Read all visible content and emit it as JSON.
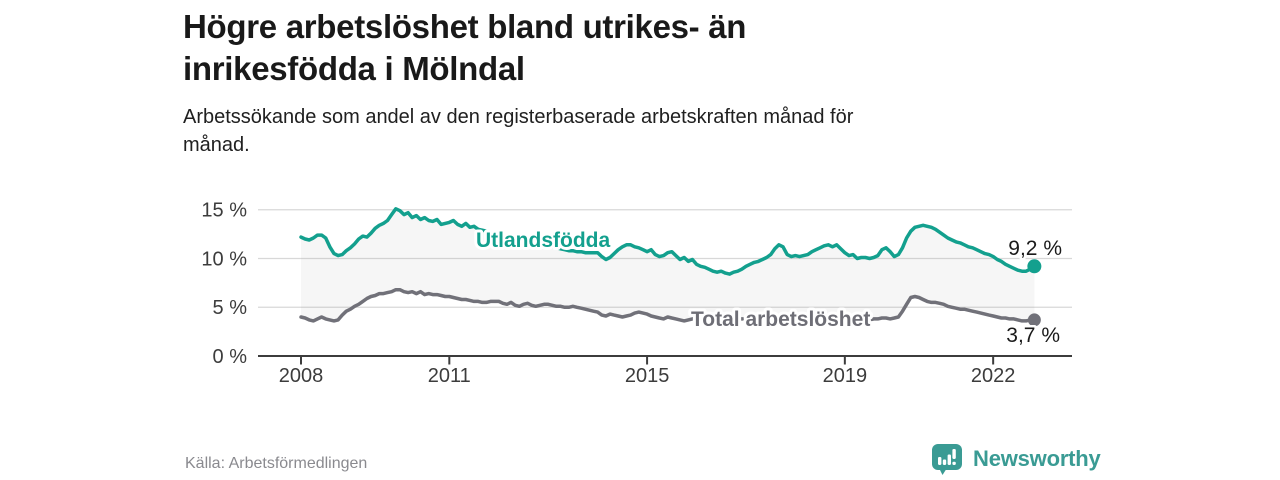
{
  "header": {
    "title_line1": "Högre arbetslöshet bland utrikes- än",
    "title_line2": "inrikesfödda i Mölndal",
    "subtitle_line1": "Arbetssökande som andel av den registerbaserade arbetskraften månad för",
    "subtitle_line2": "månad."
  },
  "footer": {
    "source": "Källa: Arbetsförmedlingen",
    "brand": "Newsworthy"
  },
  "colors": {
    "teal_line": "#13a08e",
    "gray_line": "#717179",
    "area_fill": "#8c8c8c",
    "grid": "#d8d8d8",
    "axis": "#3c3c3c",
    "text_dark": "#191919",
    "muted": "#8a8a8f",
    "brand_teal": "#3a9b94"
  },
  "chart_data": {
    "type": "line",
    "title": "Högre arbetslöshet bland utrikes- än inrikesfödda i Mölndal",
    "subtitle": "Arbetssökande som andel av den registerbaserade arbetskraften månad för månad.",
    "x_start": "2008-01",
    "x_end": "2022-11",
    "x_interval": "monthly",
    "xtick_labels": [
      "2008",
      "2011",
      "2015",
      "2019",
      "2022"
    ],
    "ytick_labels": [
      "15 %",
      "10 %",
      "5 %",
      "0 %"
    ],
    "ylim": [
      0,
      16
    ],
    "grid": "horizontal",
    "legend": "inline-labels",
    "area_between_series": true,
    "series": [
      {
        "name": "Utlandsfödda",
        "color": "#13a08e",
        "end_label": "9,2 %",
        "end_value": 9.2,
        "values": [
          12.2,
          12.0,
          11.9,
          12.1,
          12.4,
          12.4,
          12.1,
          11.2,
          10.5,
          10.3,
          10.4,
          10.8,
          11.1,
          11.5,
          12.0,
          12.3,
          12.2,
          12.6,
          13.1,
          13.4,
          13.6,
          13.9,
          14.5,
          15.1,
          14.9,
          14.5,
          14.7,
          14.2,
          14.4,
          14.0,
          14.2,
          13.9,
          13.8,
          14.0,
          13.5,
          13.6,
          13.7,
          13.9,
          13.5,
          13.3,
          13.6,
          13.2,
          13.3,
          13.0,
          12.9,
          12.8,
          12.7,
          12.6,
          12.5,
          12.4,
          12.3,
          12.2,
          12.1,
          12.0,
          11.9,
          11.8,
          11.7,
          11.6,
          11.5,
          11.4,
          11.3,
          11.2,
          11.1,
          11.0,
          10.9,
          10.8,
          10.8,
          10.7,
          10.7,
          10.6,
          10.6,
          10.6,
          10.6,
          10.2,
          9.9,
          10.1,
          10.5,
          10.9,
          11.2,
          11.4,
          11.4,
          11.2,
          11.1,
          10.9,
          10.7,
          10.9,
          10.4,
          10.2,
          10.3,
          10.6,
          10.7,
          10.3,
          9.9,
          10.1,
          9.7,
          9.9,
          9.4,
          9.2,
          9.1,
          8.9,
          8.7,
          8.6,
          8.7,
          8.5,
          8.4,
          8.6,
          8.7,
          8.9,
          9.2,
          9.4,
          9.6,
          9.7,
          9.9,
          10.1,
          10.4,
          11.0,
          11.4,
          11.2,
          10.4,
          10.2,
          10.3,
          10.2,
          10.3,
          10.4,
          10.7,
          10.9,
          11.1,
          11.3,
          11.4,
          11.2,
          11.4,
          11.0,
          10.6,
          10.3,
          10.4,
          10.0,
          10.1,
          10.1,
          10.0,
          10.1,
          10.3,
          10.9,
          11.1,
          10.7,
          10.2,
          10.4,
          11.1,
          12.1,
          12.8,
          13.2,
          13.3,
          13.4,
          13.3,
          13.2,
          13.0,
          12.7,
          12.4,
          12.1,
          11.9,
          11.7,
          11.6,
          11.4,
          11.2,
          11.1,
          10.9,
          10.7,
          10.5,
          10.4,
          10.2,
          9.9,
          9.7,
          9.4,
          9.2,
          9.0,
          8.8,
          8.7,
          8.7,
          8.9,
          9.2
        ]
      },
      {
        "name": "Total arbetslöshet",
        "color": "#717179",
        "end_label": "3,7 %",
        "end_value": 3.7,
        "values": [
          4.0,
          3.9,
          3.7,
          3.6,
          3.8,
          4.0,
          3.8,
          3.7,
          3.6,
          3.7,
          4.2,
          4.6,
          4.8,
          5.1,
          5.3,
          5.6,
          5.9,
          6.1,
          6.2,
          6.4,
          6.4,
          6.5,
          6.6,
          6.8,
          6.8,
          6.6,
          6.5,
          6.6,
          6.4,
          6.6,
          6.3,
          6.4,
          6.3,
          6.3,
          6.2,
          6.1,
          6.1,
          6.0,
          5.9,
          5.8,
          5.8,
          5.7,
          5.6,
          5.6,
          5.5,
          5.5,
          5.6,
          5.6,
          5.6,
          5.4,
          5.3,
          5.5,
          5.2,
          5.1,
          5.3,
          5.4,
          5.2,
          5.1,
          5.2,
          5.3,
          5.3,
          5.2,
          5.1,
          5.1,
          5.0,
          5.0,
          5.1,
          5.0,
          4.9,
          4.8,
          4.7,
          4.6,
          4.5,
          4.2,
          4.1,
          4.3,
          4.2,
          4.1,
          4.0,
          4.1,
          4.2,
          4.4,
          4.5,
          4.4,
          4.3,
          4.1,
          4.0,
          3.9,
          3.8,
          4.0,
          3.9,
          3.8,
          3.7,
          3.6,
          3.7,
          3.8,
          3.8,
          3.7,
          3.7,
          3.6,
          3.6,
          3.5,
          3.6,
          3.6,
          3.7,
          3.7,
          3.8,
          3.8,
          3.8,
          3.7,
          3.7,
          3.6,
          3.6,
          3.6,
          3.7,
          3.7,
          3.8,
          3.8,
          3.9,
          3.8,
          3.8,
          3.7,
          3.7,
          3.6,
          3.6,
          3.5,
          3.6,
          3.6,
          3.7,
          3.7,
          3.8,
          3.8,
          3.8,
          3.8,
          3.7,
          3.7,
          3.6,
          3.7,
          3.7,
          3.8,
          3.8,
          3.9,
          3.9,
          3.8,
          3.9,
          4.0,
          4.6,
          5.3,
          6.0,
          6.1,
          6.0,
          5.8,
          5.6,
          5.5,
          5.5,
          5.4,
          5.3,
          5.1,
          5.0,
          4.9,
          4.8,
          4.8,
          4.7,
          4.6,
          4.5,
          4.4,
          4.3,
          4.2,
          4.1,
          4.0,
          3.9,
          3.9,
          3.8,
          3.8,
          3.7,
          3.6,
          3.6,
          3.7,
          3.7
        ]
      }
    ]
  }
}
